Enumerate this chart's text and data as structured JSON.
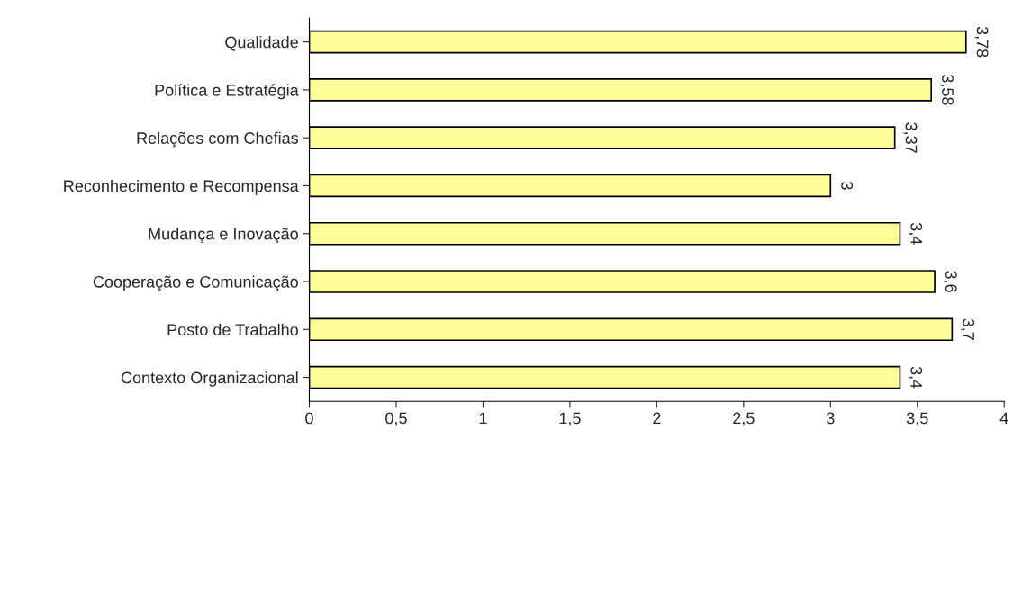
{
  "chart_data": {
    "type": "bar",
    "orientation": "horizontal",
    "categories": [
      "Qualidade",
      "Política e Estratégia",
      "Relações com Chefias",
      "Reconhecimento e Recompensa",
      "Mudança e Inovação",
      "Cooperação e Comunicação",
      "Posto de Trabalho",
      "Contexto Organizacional"
    ],
    "values": [
      3.78,
      3.58,
      3.37,
      3,
      3.4,
      3.6,
      3.7,
      3.4
    ],
    "value_labels": [
      "3,78",
      "3,58",
      "3,37",
      "3",
      "3,4",
      "3,6",
      "3,7",
      "3,4"
    ],
    "color": "#ffff99",
    "xlim": [
      0,
      4
    ],
    "xticks": [
      0,
      {
        "value": 0.5,
        "label": "0,5"
      },
      1,
      {
        "value": 1.5,
        "label": "1,5"
      },
      2,
      {
        "value": 2.5,
        "label": "2,5"
      },
      3,
      {
        "value": 3.5,
        "label": "3,5"
      },
      4
    ],
    "grid": false,
    "legend": false
  }
}
